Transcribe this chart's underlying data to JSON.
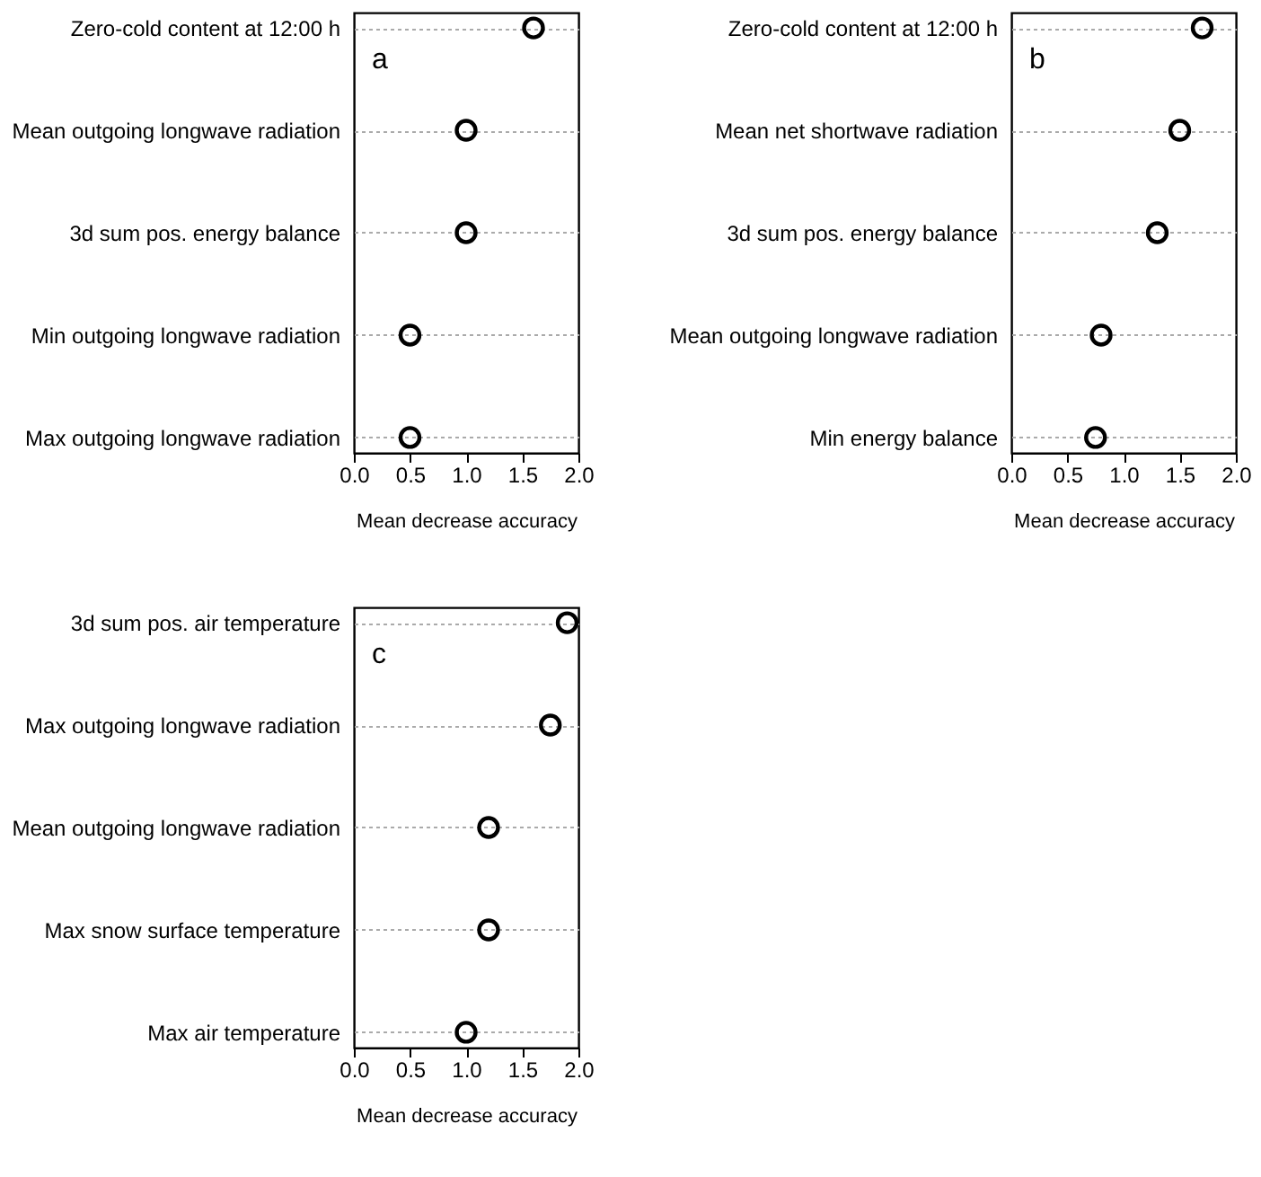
{
  "chart_data": [
    {
      "type": "scatter",
      "categories": [
        "Zero-cold content at 12:00 h",
        "Mean outgoing longwave radiation",
        "3d sum pos. energy balance",
        "Min outgoing longwave radiation",
        "Max outgoing longwave radiation"
      ],
      "orientation": "horizontal",
      "series": [
        {
          "color": "#000000",
          "values": [
            1.6,
            1.0,
            1.0,
            0.5,
            0.5
          ]
        }
      ],
      "xlabel": "Mean decrease accuracy",
      "xlim": [
        0,
        2
      ],
      "xticks": [
        {
          "value": 0,
          "label": "0.0"
        },
        {
          "value": 0.5,
          "label": "0.5"
        },
        {
          "value": 1,
          "label": "1.0"
        },
        {
          "value": 1.5,
          "label": "1.5"
        },
        {
          "value": 2,
          "label": "2.0"
        }
      ],
      "grid": "y",
      "marker": "circle",
      "annotations": [
        "a"
      ]
    },
    {
      "type": "scatter",
      "categories": [
        "Zero-cold content at 12:00 h",
        "Mean net shortwave radiation",
        "3d sum pos. energy balance",
        "Mean outgoing longwave radiation",
        "Min energy balance"
      ],
      "orientation": "horizontal",
      "series": [
        {
          "color": "#000000",
          "values": [
            1.7,
            1.5,
            1.3,
            0.8,
            0.75
          ]
        }
      ],
      "xlabel": "Mean decrease accuracy",
      "xlim": [
        0,
        2
      ],
      "xticks": [
        {
          "value": 0,
          "label": "0.0"
        },
        {
          "value": 0.5,
          "label": "0.5"
        },
        {
          "value": 1,
          "label": "1.0"
        },
        {
          "value": 1.5,
          "label": "1.5"
        },
        {
          "value": 2,
          "label": "2.0"
        }
      ],
      "grid": "y",
      "marker": "circle",
      "annotations": [
        "b"
      ]
    },
    {
      "type": "scatter",
      "categories": [
        "3d sum pos. air temperature",
        "Max outgoing longwave radiation",
        "Mean outgoing longwave radiation",
        "Max snow surface temperature",
        "Max air temperature"
      ],
      "orientation": "horizontal",
      "series": [
        {
          "color": "#000000",
          "values": [
            1.9,
            1.75,
            1.2,
            1.2,
            1.0
          ]
        }
      ],
      "xlabel": "Mean decrease accuracy",
      "xlim": [
        0,
        2
      ],
      "xticks": [
        {
          "value": 0,
          "label": "0.0"
        },
        {
          "value": 0.5,
          "label": "0.5"
        },
        {
          "value": 1,
          "label": "1.0"
        },
        {
          "value": 1.5,
          "label": "1.5"
        },
        {
          "value": 2,
          "label": "2.0"
        }
      ],
      "grid": "y",
      "marker": "circle",
      "annotations": [
        "c"
      ]
    }
  ]
}
